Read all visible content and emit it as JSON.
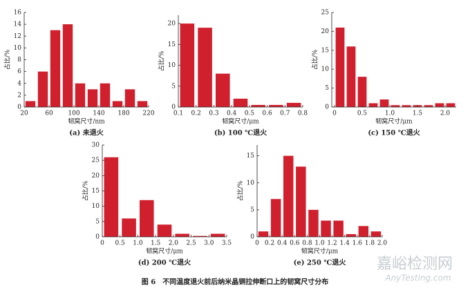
{
  "chart_data": [
    {
      "type": "histogram",
      "caption": "(a) 未退火",
      "x_label": "韧窝尺寸/nm",
      "y_label": "占比/%",
      "color": "#d0202e",
      "bins": [
        20,
        40,
        60,
        80,
        100,
        120,
        140,
        160,
        180,
        200,
        220
      ],
      "values": [
        1,
        6,
        13,
        14,
        4,
        3,
        4,
        1,
        3,
        1
      ],
      "xlim": [
        20,
        220
      ],
      "xticks": [
        20,
        60,
        100,
        140,
        180,
        220
      ],
      "ylim": [
        0,
        16
      ],
      "yticks": [
        0,
        2,
        4,
        6,
        8,
        10,
        12,
        14,
        16
      ]
    },
    {
      "type": "histogram",
      "caption": "(b) 100 ℃退火",
      "x_label": "韧窝尺寸/μm",
      "y_label": "占比/%",
      "color": "#d0202e",
      "bins": [
        0.1,
        0.2,
        0.3,
        0.4,
        0.5,
        0.6,
        0.7,
        0.8
      ],
      "values": [
        20,
        19,
        8,
        2,
        0.5,
        0.5,
        1
      ],
      "xlim": [
        0.1,
        0.8
      ],
      "xticks": [
        0.1,
        0.2,
        0.3,
        0.4,
        0.5,
        0.6,
        0.7,
        0.8
      ],
      "ylim": [
        0,
        22
      ],
      "yticks": [
        0,
        5,
        10,
        15,
        20
      ]
    },
    {
      "type": "histogram",
      "caption": "(c) 150 ℃退火",
      "x_label": "韧窝尺寸/μm",
      "y_label": "占比/%",
      "color": "#d0202e",
      "bins": [
        0,
        0.2,
        0.4,
        0.6,
        0.8,
        1.0,
        1.2,
        1.4,
        1.6,
        1.8,
        2.0,
        2.2
      ],
      "values": [
        21,
        16,
        8,
        1,
        2,
        0.5,
        0.5,
        0.5,
        0.5,
        1,
        1
      ],
      "xlim": [
        -0.05,
        2.2
      ],
      "xticks": [
        0,
        0.5,
        {
          "value": 1,
          "label": "1.0"
        },
        1.5,
        {
          "value": 2,
          "label": "2.0"
        }
      ],
      "ylim": [
        0,
        25
      ],
      "yticks": [
        0,
        5,
        10,
        15,
        20,
        25
      ]
    },
    {
      "type": "histogram",
      "caption": "(d) 200 ℃退火",
      "x_label": "韧窝尺寸/μm",
      "y_label": "占比/%",
      "color": "#d0202e",
      "bins": [
        0,
        0.5,
        1.0,
        1.5,
        2.0,
        2.5,
        3.0,
        3.5
      ],
      "values": [
        26,
        6,
        12,
        4,
        1,
        0.3,
        1
      ],
      "xlim": [
        0,
        3.5
      ],
      "xticks": [
        0,
        0.5,
        {
          "value": 1,
          "label": "1.0"
        },
        1.5,
        {
          "value": 2,
          "label": "2.0"
        },
        2.5,
        {
          "value": 3,
          "label": "3.0"
        },
        3.5
      ],
      "ylim": [
        0,
        30
      ],
      "yticks": [
        0,
        5,
        10,
        15,
        20,
        25,
        30
      ]
    },
    {
      "type": "histogram",
      "caption": "(e) 250 ℃退火",
      "x_label": "韧窝尺寸/μm",
      "y_label": "占比/%",
      "color": "#d0202e",
      "bins": [
        0,
        0.2,
        0.4,
        0.6,
        0.8,
        1.0,
        1.2,
        1.4,
        1.6,
        1.8,
        2.0
      ],
      "values": [
        1,
        7,
        15,
        13,
        5,
        3,
        3,
        0.5,
        2,
        1
      ],
      "xlim": [
        0,
        2.0
      ],
      "xticks": [
        0,
        0.2,
        0.4,
        0.6,
        0.8,
        {
          "value": 1,
          "label": "1.0"
        },
        1.2,
        1.4,
        1.6,
        1.8,
        {
          "value": 2,
          "label": "2.0"
        }
      ],
      "ylim": [
        0,
        17
      ],
      "yticks": [
        0,
        5,
        10,
        15
      ]
    }
  ],
  "figure_caption": "图 6　不同温度退火前后纳米晶铜拉伸断口上的韧窝尺寸分布",
  "watermark": {
    "title": "嘉峪检测网",
    "url": "AnyTesting.com"
  }
}
